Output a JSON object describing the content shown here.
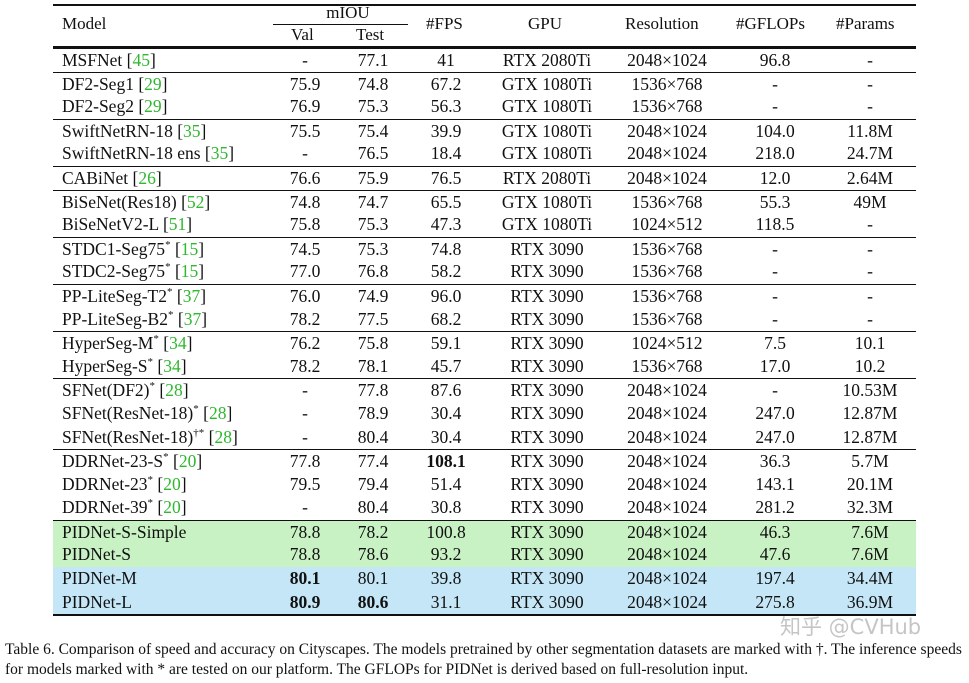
{
  "header": {
    "model": "Model",
    "miou": "mIOU",
    "val": "Val",
    "test": "Test",
    "fps": "#FPS",
    "gpu": "GPU",
    "resolution": "Resolution",
    "gflops": "#GFLOPs",
    "params": "#Params"
  },
  "colors": {
    "ref": "#2db82d",
    "pidnet_s_rows": "#c9f2c4",
    "pidnet_ml_rows": "#c4e6f7"
  },
  "rows": [
    {
      "name": "MSFNet",
      "sup": "",
      "ref": "45",
      "val": "-",
      "test": "77.1",
      "fps": "41",
      "gpu": "RTX 2080Ti",
      "res": "2048×1024",
      "gflops": "96.8",
      "params": "-",
      "div": true
    },
    {
      "name": "DF2-Seg1",
      "sup": "",
      "ref": "29",
      "val": "75.9",
      "test": "74.8",
      "fps": "67.2",
      "gpu": "GTX 1080Ti",
      "res": "1536×768",
      "gflops": "-",
      "params": "-",
      "div": true
    },
    {
      "name": "DF2-Seg2",
      "sup": "",
      "ref": "29",
      "val": "76.9",
      "test": "75.3",
      "fps": "56.3",
      "gpu": "GTX 1080Ti",
      "res": "1536×768",
      "gflops": "-",
      "params": "-"
    },
    {
      "name": "SwiftNetRN-18",
      "sup": "",
      "ref": "35",
      "val": "75.5",
      "test": "75.4",
      "fps": "39.9",
      "gpu": "GTX 1080Ti",
      "res": "2048×1024",
      "gflops": "104.0",
      "params": "11.8M",
      "div": true
    },
    {
      "name": "SwiftNetRN-18 ens",
      "sup": "",
      "ref": "35",
      "val": "-",
      "test": "76.5",
      "fps": "18.4",
      "gpu": "GTX 1080Ti",
      "res": "2048×1024",
      "gflops": "218.0",
      "params": "24.7M"
    },
    {
      "name": "CABiNet",
      "sup": "",
      "ref": "26",
      "val": "76.6",
      "test": "75.9",
      "fps": "76.5",
      "gpu": "RTX 2080Ti",
      "res": "2048×1024",
      "gflops": "12.0",
      "params": "2.64M",
      "div": true
    },
    {
      "name": "BiSeNet(Res18)",
      "sup": "",
      "ref": "52",
      "val": "74.8",
      "test": "74.7",
      "fps": "65.5",
      "gpu": "GTX 1080Ti",
      "res": "1536×768",
      "gflops": "55.3",
      "params": "49M",
      "div": true
    },
    {
      "name": "BiSeNetV2-L",
      "sup": "",
      "ref": "51",
      "val": "75.8",
      "test": "75.3",
      "fps": "47.3",
      "gpu": "GTX 1080Ti",
      "res": "1024×512",
      "gflops": "118.5",
      "params": "-"
    },
    {
      "name": "STDC1-Seg75",
      "sup": "*",
      "ref": "15",
      "val": "74.5",
      "test": "75.3",
      "fps": "74.8",
      "gpu": "RTX 3090",
      "res": "1536×768",
      "gflops": "-",
      "params": "-",
      "div": true
    },
    {
      "name": "STDC2-Seg75",
      "sup": "*",
      "ref": "15",
      "val": "77.0",
      "test": "76.8",
      "fps": "58.2",
      "gpu": "RTX 3090",
      "res": "1536×768",
      "gflops": "-",
      "params": "-"
    },
    {
      "name": "PP-LiteSeg-T2",
      "sup": "*",
      "ref": "37",
      "val": "76.0",
      "test": "74.9",
      "fps": "96.0",
      "gpu": "RTX 3090",
      "res": "1536×768",
      "gflops": "-",
      "params": "-",
      "div": true
    },
    {
      "name": "PP-LiteSeg-B2",
      "sup": "*",
      "ref": "37",
      "val": "78.2",
      "test": "77.5",
      "fps": "68.2",
      "gpu": "RTX 3090",
      "res": "1536×768",
      "gflops": "-",
      "params": "-"
    },
    {
      "name": "HyperSeg-M",
      "sup": "*",
      "ref": "34",
      "val": "76.2",
      "test": "75.8",
      "fps": "59.1",
      "gpu": "RTX 3090",
      "res": "1024×512",
      "gflops": "7.5",
      "params": "10.1",
      "div": true
    },
    {
      "name": "HyperSeg-S",
      "sup": "*",
      "ref": "34",
      "val": "78.2",
      "test": "78.1",
      "fps": "45.7",
      "gpu": "RTX 3090",
      "res": "1536×768",
      "gflops": "17.0",
      "params": "10.2"
    },
    {
      "name": "SFNet(DF2)",
      "sup": "*",
      "ref": "28",
      "val": "-",
      "test": "77.8",
      "fps": "87.6",
      "gpu": "RTX 3090",
      "res": "2048×1024",
      "gflops": "-",
      "params": "10.53M",
      "div": true
    },
    {
      "name": "SFNet(ResNet-18)",
      "sup": "*",
      "ref": "28",
      "val": "-",
      "test": "78.9",
      "fps": "30.4",
      "gpu": "RTX 3090",
      "res": "2048×1024",
      "gflops": "247.0",
      "params": "12.87M"
    },
    {
      "name": "SFNet(ResNet-18)",
      "sup": "†*",
      "ref": "28",
      "val": "-",
      "test": "80.4",
      "fps": "30.4",
      "gpu": "RTX 3090",
      "res": "2048×1024",
      "gflops": "247.0",
      "params": "12.87M"
    },
    {
      "name": "DDRNet-23-S",
      "sup": "*",
      "ref": "20",
      "val": "77.8",
      "test": "77.4",
      "fps": "108.1",
      "gpu": "RTX 3090",
      "res": "2048×1024",
      "gflops": "36.3",
      "params": "5.7M",
      "div": true,
      "bold": [
        "fps"
      ]
    },
    {
      "name": "DDRNet-23",
      "sup": "*",
      "ref": "20",
      "val": "79.5",
      "test": "79.4",
      "fps": "51.4",
      "gpu": "RTX 3090",
      "res": "2048×1024",
      "gflops": "143.1",
      "params": "20.1M"
    },
    {
      "name": "DDRNet-39",
      "sup": "*",
      "ref": "20",
      "val": "-",
      "test": "80.4",
      "fps": "30.8",
      "gpu": "RTX 3090",
      "res": "2048×1024",
      "gflops": "281.2",
      "params": "32.3M"
    },
    {
      "name": "PIDNet-S-Simple",
      "sup": "",
      "ref": "",
      "val": "78.8",
      "test": "78.2",
      "fps": "100.8",
      "gpu": "RTX 3090",
      "res": "2048×1024",
      "gflops": "46.3",
      "params": "7.6M",
      "div": true,
      "hl": "green"
    },
    {
      "name": "PIDNet-S",
      "sup": "",
      "ref": "",
      "val": "78.8",
      "test": "78.6",
      "fps": "93.2",
      "gpu": "RTX 3090",
      "res": "2048×1024",
      "gflops": "47.6",
      "params": "7.6M",
      "hl": "green"
    },
    {
      "name": "PIDNet-M",
      "sup": "",
      "ref": "",
      "val": "80.1",
      "test": "80.1",
      "fps": "39.8",
      "gpu": "RTX 3090",
      "res": "2048×1024",
      "gflops": "197.4",
      "params": "34.4M",
      "hl": "blue",
      "bold": [
        "val"
      ]
    },
    {
      "name": "PIDNet-L",
      "sup": "",
      "ref": "",
      "val": "80.9",
      "test": "80.6",
      "fps": "31.1",
      "gpu": "RTX 3090",
      "res": "2048×1024",
      "gflops": "275.8",
      "params": "36.9M",
      "hl": "blue",
      "bold": [
        "val",
        "test"
      ]
    }
  ],
  "caption": "Table 6. Comparison of speed and accuracy on Cityscapes. The models pretrained by other segmentation datasets are marked with †. The inference speeds for models marked with * are tested on our platform. The GFLOPs for PIDNet is derived based on full-resolution input.",
  "watermark": "知乎 @CVHub"
}
